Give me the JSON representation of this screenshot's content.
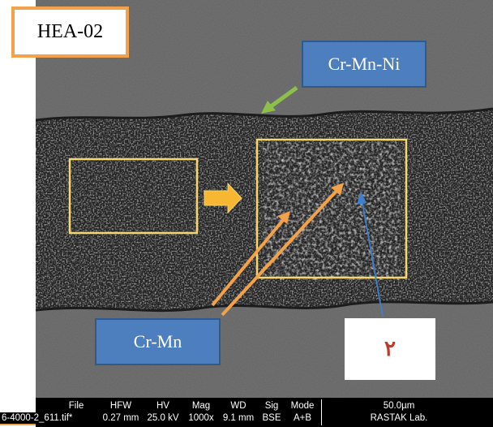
{
  "labels": {
    "sample": "HEA-02",
    "phase_top": "Cr-Mn-Ni",
    "phase_bottom": "Cr-Mn",
    "point": "٢"
  },
  "databar": {
    "file_head": "File",
    "file_val": "6-4000-2_611.tif*",
    "hfw_head": "HFW",
    "hfw_val": "0.27 mm",
    "hv_head": "HV",
    "hv_val": "25.0 kV",
    "mag_head": "Mag",
    "mag_val": "1000x",
    "wd_head": "WD",
    "wd_val": "9.1 mm",
    "sig_head": "Sig",
    "sig_val": "BSE",
    "mode_head": "Mode",
    "mode_val": "A+B",
    "scale": "50.0µm",
    "lab": "RASTAK Lab."
  },
  "colors": {
    "label_blue": "#4d7ebd",
    "frame_orange": "#f4a24a",
    "box_yellow": "#f5d76e",
    "arrow_green": "#8dc04a",
    "arrow_blue": "#3f7fd1",
    "number_red": "#c0392b"
  }
}
